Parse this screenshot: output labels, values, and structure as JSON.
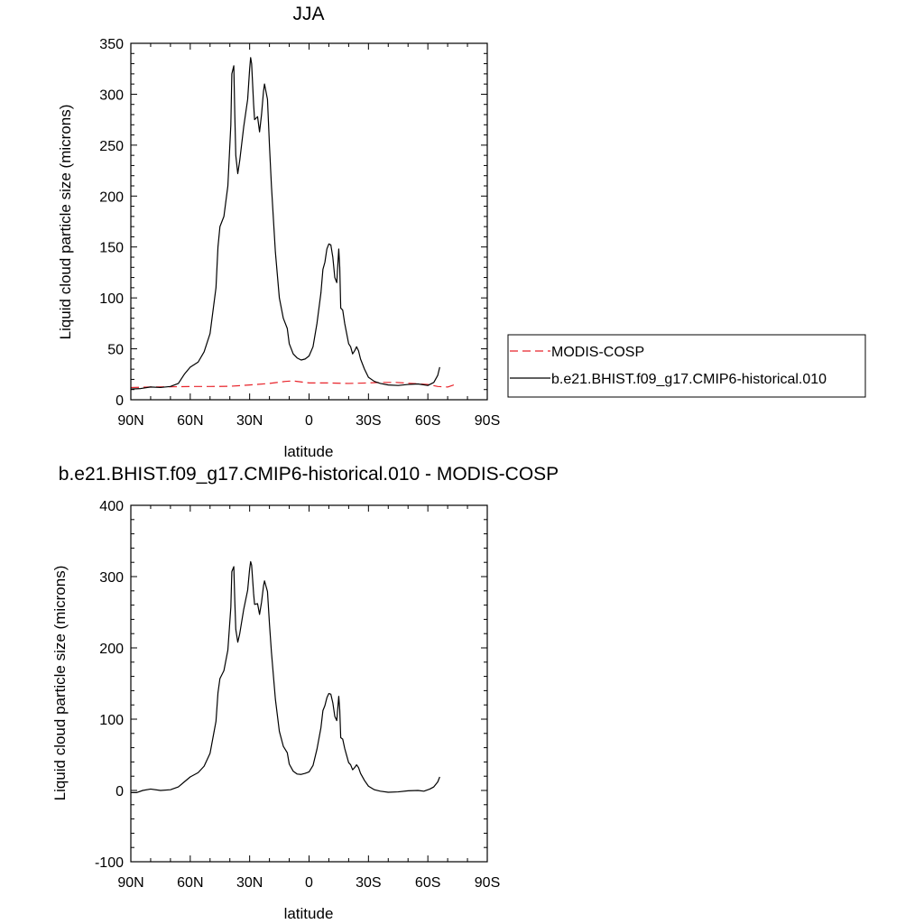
{
  "chart_data": [
    {
      "type": "line",
      "title": "JJA",
      "xlabel": "latitude",
      "ylabel": "Liquid cloud particle size (microns)",
      "xlim": [
        90,
        -90
      ],
      "ylim": [
        0,
        350
      ],
      "xticks": [
        {
          "value": 90,
          "label": "90N"
        },
        {
          "value": 60,
          "label": "60N"
        },
        {
          "value": 30,
          "label": "30N"
        },
        {
          "value": 0,
          "label": "0"
        },
        {
          "value": -30,
          "label": "30S"
        },
        {
          "value": -60,
          "label": "60S"
        },
        {
          "value": -90,
          "label": "90S"
        }
      ],
      "yticks": [
        {
          "value": 0,
          "label": "0"
        },
        {
          "value": 50,
          "label": "50"
        },
        {
          "value": 100,
          "label": "100"
        },
        {
          "value": 150,
          "label": "150"
        },
        {
          "value": 200,
          "label": "200"
        },
        {
          "value": 250,
          "label": "250"
        },
        {
          "value": 300,
          "label": "300"
        },
        {
          "value": 350,
          "label": "350"
        }
      ],
      "grid": false,
      "legend_position": "right",
      "series": [
        {
          "name": "MODIS-COSP",
          "color": "#e8232a",
          "dash": "dashed",
          "points": [
            [
              90,
              12
            ],
            [
              80,
              12.5
            ],
            [
              70,
              12.7
            ],
            [
              60,
              13
            ],
            [
              50,
              13
            ],
            [
              40,
              13.2
            ],
            [
              30,
              14.5
            ],
            [
              20,
              16
            ],
            [
              12,
              18
            ],
            [
              8,
              18.5
            ],
            [
              0,
              16.5
            ],
            [
              -10,
              16.5
            ],
            [
              -20,
              16
            ],
            [
              -30,
              16.5
            ],
            [
              -36,
              17
            ],
            [
              -44,
              17
            ],
            [
              -52,
              16
            ],
            [
              -60,
              15
            ],
            [
              -65,
              13
            ],
            [
              -70,
              12.5
            ],
            [
              -73,
              14.5
            ],
            [
              -75,
              14
            ]
          ]
        },
        {
          "name": "b.e21.BHIST.f09_g17.CMIP6-historical.010",
          "color": "#000000",
          "dash": "solid",
          "points": [
            [
              90,
              10.5
            ],
            [
              85,
              11
            ],
            [
              80,
              12.5
            ],
            [
              75,
              12
            ],
            [
              70,
              13
            ],
            [
              66,
              16
            ],
            [
              63,
              25
            ],
            [
              60,
              32
            ],
            [
              56,
              37
            ],
            [
              53,
              47
            ],
            [
              50,
              65
            ],
            [
              47,
              110
            ],
            [
              46,
              150
            ],
            [
              45,
              170
            ],
            [
              43,
              180
            ],
            [
              41,
              210
            ],
            [
              39.5,
              270
            ],
            [
              39,
              320
            ],
            [
              38,
              328
            ],
            [
              37.5,
              280
            ],
            [
              37,
              240
            ],
            [
              36,
              222
            ],
            [
              35,
              235
            ],
            [
              33,
              268
            ],
            [
              31,
              295
            ],
            [
              30,
              325
            ],
            [
              29.5,
              336
            ],
            [
              29,
              330
            ],
            [
              28,
              290
            ],
            [
              27.5,
              275
            ],
            [
              26,
              278
            ],
            [
              25,
              263
            ],
            [
              24,
              280
            ],
            [
              23,
              303
            ],
            [
              22.5,
              310
            ],
            [
              21,
              295
            ],
            [
              20,
              250
            ],
            [
              19,
              210
            ],
            [
              17,
              145
            ],
            [
              15,
              100
            ],
            [
              13,
              80
            ],
            [
              11,
              70
            ],
            [
              10,
              55
            ],
            [
              8,
              45
            ],
            [
              6,
              41
            ],
            [
              4,
              39
            ],
            [
              2,
              40
            ],
            [
              0,
              43
            ],
            [
              -2,
              52
            ],
            [
              -4,
              75
            ],
            [
              -6,
              105
            ],
            [
              -7,
              128
            ],
            [
              -8,
              135
            ],
            [
              -9,
              148
            ],
            [
              -10,
              153
            ],
            [
              -11,
              152
            ],
            [
              -12,
              140
            ],
            [
              -13,
              120
            ],
            [
              -14,
              115
            ],
            [
              -15,
              148
            ],
            [
              -15.5,
              130
            ],
            [
              -16,
              90
            ],
            [
              -17,
              88
            ],
            [
              -18,
              75
            ],
            [
              -19,
              65
            ],
            [
              -20,
              55
            ],
            [
              -21,
              52
            ],
            [
              -22,
              45
            ],
            [
              -23,
              48
            ],
            [
              -24,
              52
            ],
            [
              -25,
              48
            ],
            [
              -26,
              40
            ],
            [
              -28,
              30
            ],
            [
              -30,
              22
            ],
            [
              -33,
              18
            ],
            [
              -36,
              16
            ],
            [
              -40,
              14.5
            ],
            [
              -45,
              14
            ],
            [
              -50,
              15
            ],
            [
              -55,
              15.5
            ],
            [
              -60,
              14
            ],
            [
              -63,
              17
            ],
            [
              -65,
              24
            ],
            [
              -66,
              32
            ]
          ]
        }
      ]
    },
    {
      "type": "line",
      "title": "b.e21.BHIST.f09_g17.CMIP6-historical.010 - MODIS-COSP",
      "xlabel": "latitude",
      "ylabel": "Liquid cloud particle size (microns)",
      "xlim": [
        90,
        -90
      ],
      "ylim": [
        -100,
        400
      ],
      "xticks": [
        {
          "value": 90,
          "label": "90N"
        },
        {
          "value": 60,
          "label": "60N"
        },
        {
          "value": 30,
          "label": "30N"
        },
        {
          "value": 0,
          "label": "0"
        },
        {
          "value": -30,
          "label": "30S"
        },
        {
          "value": -60,
          "label": "60S"
        },
        {
          "value": -90,
          "label": "90S"
        }
      ],
      "yticks": [
        {
          "value": -100,
          "label": "-100"
        },
        {
          "value": 0,
          "label": "0"
        },
        {
          "value": 100,
          "label": "100"
        },
        {
          "value": 200,
          "label": "200"
        },
        {
          "value": 300,
          "label": "300"
        },
        {
          "value": 400,
          "label": "400"
        }
      ],
      "grid": false,
      "series": [
        {
          "color": "#000000",
          "dash": "solid",
          "points": [
            [
              90,
              -3
            ],
            [
              87,
              -3
            ],
            [
              84,
              0
            ],
            [
              80,
              2
            ],
            [
              75,
              0
            ],
            [
              70,
              1
            ],
            [
              66,
              5
            ],
            [
              63,
              12
            ],
            [
              60,
              19
            ],
            [
              56,
              25
            ],
            [
              53,
              34
            ],
            [
              50,
              52
            ],
            [
              47,
              97
            ],
            [
              46,
              137
            ],
            [
              45,
              157
            ],
            [
              43,
              168
            ],
            [
              41,
              197
            ],
            [
              39.5,
              257
            ],
            [
              39,
              307
            ],
            [
              38,
              314
            ],
            [
              37.5,
              266
            ],
            [
              37,
              226
            ],
            [
              36,
              208
            ],
            [
              35,
              220
            ],
            [
              33,
              254
            ],
            [
              31,
              281
            ],
            [
              30,
              311
            ],
            [
              29.5,
              321
            ],
            [
              29,
              316
            ],
            [
              28,
              276
            ],
            [
              27.5,
              261
            ],
            [
              26,
              262
            ],
            [
              25,
              247
            ],
            [
              24,
              264
            ],
            [
              23,
              287
            ],
            [
              22.5,
              294
            ],
            [
              21,
              279
            ],
            [
              20,
              234
            ],
            [
              19,
              194
            ],
            [
              17,
              128
            ],
            [
              15,
              83
            ],
            [
              13,
              62
            ],
            [
              11,
              53
            ],
            [
              10,
              37
            ],
            [
              8,
              27
            ],
            [
              6,
              23
            ],
            [
              4,
              22.5
            ],
            [
              2,
              24
            ],
            [
              0,
              26
            ],
            [
              -2,
              35
            ],
            [
              -4,
              58
            ],
            [
              -6,
              88
            ],
            [
              -7,
              112
            ],
            [
              -8,
              119
            ],
            [
              -9,
              130
            ],
            [
              -10,
              136
            ],
            [
              -11,
              135
            ],
            [
              -12,
              123
            ],
            [
              -13,
              104
            ],
            [
              -14,
              98
            ],
            [
              -15,
              132
            ],
            [
              -15.5,
              113
            ],
            [
              -16,
              74
            ],
            [
              -17,
              72
            ],
            [
              -18,
              59
            ],
            [
              -19,
              49
            ],
            [
              -20,
              39
            ],
            [
              -21,
              36
            ],
            [
              -22,
              29
            ],
            [
              -23,
              32
            ],
            [
              -24,
              36
            ],
            [
              -25,
              32
            ],
            [
              -26,
              24
            ],
            [
              -28,
              14
            ],
            [
              -30,
              6
            ],
            [
              -33,
              1
            ],
            [
              -36,
              -1
            ],
            [
              -40,
              -2.5
            ],
            [
              -45,
              -2
            ],
            [
              -50,
              -0.5
            ],
            [
              -55,
              0
            ],
            [
              -58,
              -1
            ],
            [
              -61,
              2
            ],
            [
              -63,
              5
            ],
            [
              -65,
              12
            ],
            [
              -66,
              19
            ]
          ]
        }
      ]
    }
  ]
}
